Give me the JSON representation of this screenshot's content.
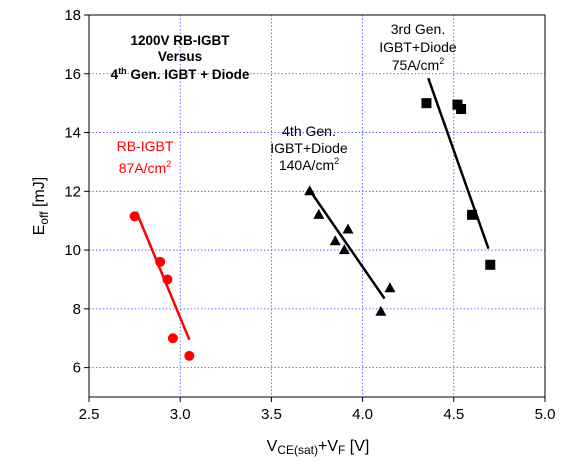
{
  "chart_data": {
    "type": "scatter",
    "xlim": [
      2.5,
      5.0
    ],
    "ylim": [
      5,
      18
    ],
    "x_ticks": [
      "2.5",
      "3.0",
      "3.5",
      "4.0",
      "4.5",
      "5.0"
    ],
    "y_ticks": [
      "6",
      "8",
      "10",
      "12",
      "14",
      "16",
      "18"
    ],
    "xlabel": {
      "main": "V",
      "sub": "CE(sat)",
      "mid": "+V",
      "sub2": "F",
      "unit": " [V]"
    },
    "ylabel": {
      "main": "E",
      "sub": "off",
      "unit": " [mJ]"
    },
    "grid": true,
    "title_block": {
      "line1": "1200V RB-IGBT",
      "line2": "Versus",
      "line3_pre": "4",
      "line3_sup": "th",
      "line3_post": " Gen. IGBT + Diode"
    },
    "series": [
      {
        "name_line1": "RB-IGBT",
        "name_line2_pre": "87A/cm",
        "name_line2_sup": "2",
        "marker": "circle",
        "color": "#ff0000",
        "points": [
          [
            2.75,
            11.15
          ],
          [
            2.89,
            9.6
          ],
          [
            2.93,
            9.0
          ],
          [
            2.96,
            7.0
          ],
          [
            3.05,
            6.4
          ]
        ],
        "fit": [
          [
            2.76,
            11.3
          ],
          [
            3.05,
            6.95
          ]
        ]
      },
      {
        "name_line1": "4th Gen.",
        "name_line2": "IGBT+Diode",
        "name_line3_pre": "140A/cm",
        "name_line3_sup": "2",
        "marker": "triangle",
        "color": "#000000",
        "points": [
          [
            3.71,
            12.0
          ],
          [
            3.76,
            11.2
          ],
          [
            3.85,
            10.3
          ],
          [
            3.9,
            10.0
          ],
          [
            3.92,
            10.7
          ],
          [
            4.1,
            7.9
          ],
          [
            4.15,
            8.7
          ]
        ],
        "fit": [
          [
            3.72,
            11.95
          ],
          [
            4.12,
            8.35
          ]
        ]
      },
      {
        "name_line1": "3rd Gen.",
        "name_line2": "IGBT+Diode",
        "name_line3_pre": "75A/cm",
        "name_line3_sup": "2",
        "marker": "square",
        "color": "#000000",
        "points": [
          [
            4.35,
            15.0
          ],
          [
            4.52,
            14.95
          ],
          [
            4.54,
            14.8
          ],
          [
            4.6,
            11.2
          ],
          [
            4.7,
            9.5
          ]
        ],
        "fit": [
          [
            4.36,
            15.85
          ],
          [
            4.69,
            10.05
          ]
        ]
      }
    ]
  }
}
